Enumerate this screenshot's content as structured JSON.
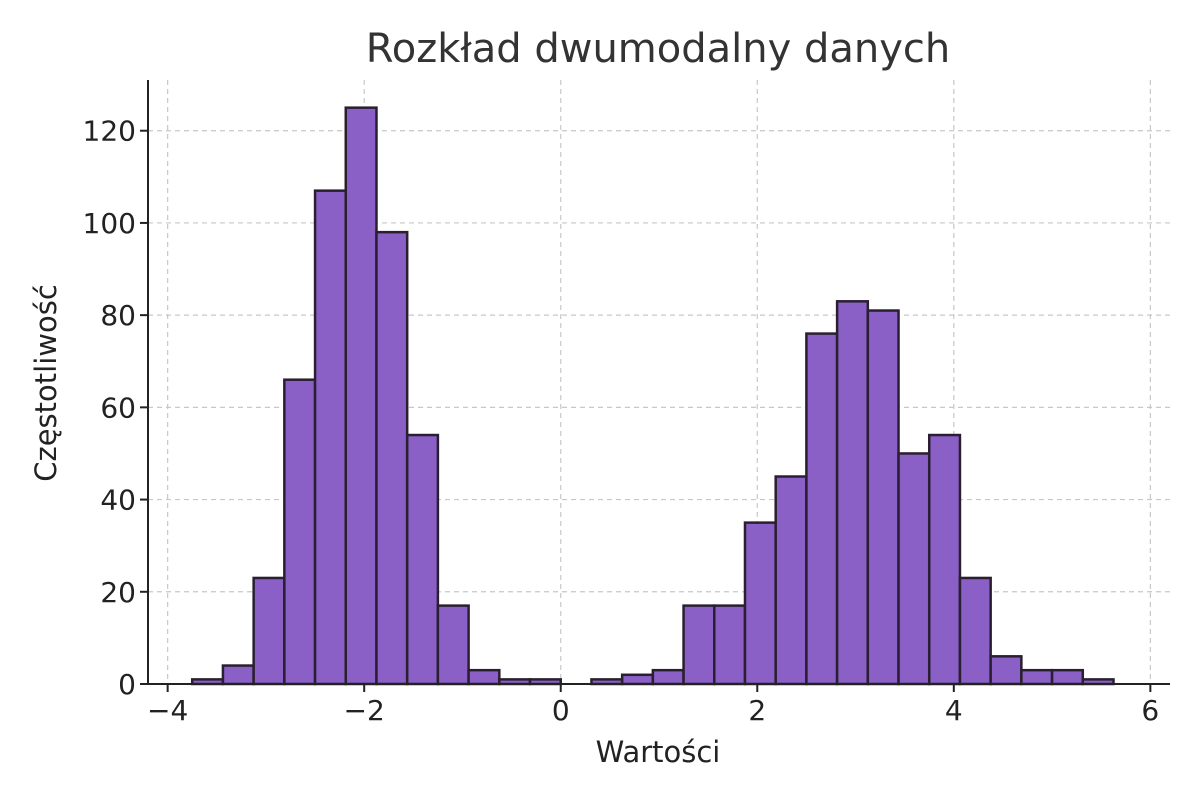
{
  "chart_data": {
    "type": "bar",
    "title": "Rozkład dwumodalny danych",
    "xlabel": "Wartości",
    "ylabel": "Częstotliwość",
    "xlim": [
      -4.2,
      6.2
    ],
    "ylim": [
      0,
      131
    ],
    "x_ticks": [
      -4,
      -2,
      0,
      2,
      4,
      6
    ],
    "x_tick_labels": [
      "−4",
      "−2",
      "0",
      "2",
      "4",
      "6"
    ],
    "y_ticks": [
      0,
      20,
      40,
      60,
      80,
      100,
      120
    ],
    "y_tick_labels": [
      "0",
      "20",
      "40",
      "60",
      "80",
      "100",
      "120"
    ],
    "grid": true,
    "bar_color": "#8a5fc6",
    "edge_color": "#2a1f30",
    "bin_start": -3.75,
    "bin_width": 0.3125,
    "bins": [
      {
        "x0": -3.75,
        "x1": -3.4375,
        "count": 1
      },
      {
        "x0": -3.4375,
        "x1": -3.125,
        "count": 4
      },
      {
        "x0": -3.125,
        "x1": -2.8125,
        "count": 23
      },
      {
        "x0": -2.8125,
        "x1": -2.5,
        "count": 66
      },
      {
        "x0": -2.5,
        "x1": -2.1875,
        "count": 107
      },
      {
        "x0": -2.1875,
        "x1": -1.875,
        "count": 125
      },
      {
        "x0": -1.875,
        "x1": -1.5625,
        "count": 98
      },
      {
        "x0": -1.5625,
        "x1": -1.25,
        "count": 54
      },
      {
        "x0": -1.25,
        "x1": -0.9375,
        "count": 17
      },
      {
        "x0": -0.9375,
        "x1": -0.625,
        "count": 3
      },
      {
        "x0": -0.625,
        "x1": -0.3125,
        "count": 1
      },
      {
        "x0": -0.3125,
        "x1": 0.0,
        "count": 1
      },
      {
        "x0": 0.0,
        "x1": 0.3125,
        "count": 0
      },
      {
        "x0": 0.3125,
        "x1": 0.625,
        "count": 1
      },
      {
        "x0": 0.625,
        "x1": 0.9375,
        "count": 2
      },
      {
        "x0": 0.9375,
        "x1": 1.25,
        "count": 3
      },
      {
        "x0": 1.25,
        "x1": 1.5625,
        "count": 17
      },
      {
        "x0": 1.5625,
        "x1": 1.875,
        "count": 17
      },
      {
        "x0": 1.875,
        "x1": 2.1875,
        "count": 35
      },
      {
        "x0": 2.1875,
        "x1": 2.5,
        "count": 45
      },
      {
        "x0": 2.5,
        "x1": 2.8125,
        "count": 76
      },
      {
        "x0": 2.8125,
        "x1": 3.125,
        "count": 83
      },
      {
        "x0": 3.125,
        "x1": 3.4375,
        "count": 81
      },
      {
        "x0": 3.4375,
        "x1": 3.75,
        "count": 50
      },
      {
        "x0": 3.75,
        "x1": 4.0625,
        "count": 54
      },
      {
        "x0": 4.0625,
        "x1": 4.375,
        "count": 23
      },
      {
        "x0": 4.375,
        "x1": 4.6875,
        "count": 6
      },
      {
        "x0": 4.6875,
        "x1": 5.0,
        "count": 3
      },
      {
        "x0": 5.0,
        "x1": 5.3125,
        "count": 3
      },
      {
        "x0": 5.3125,
        "x1": 5.625,
        "count": 1
      }
    ]
  }
}
